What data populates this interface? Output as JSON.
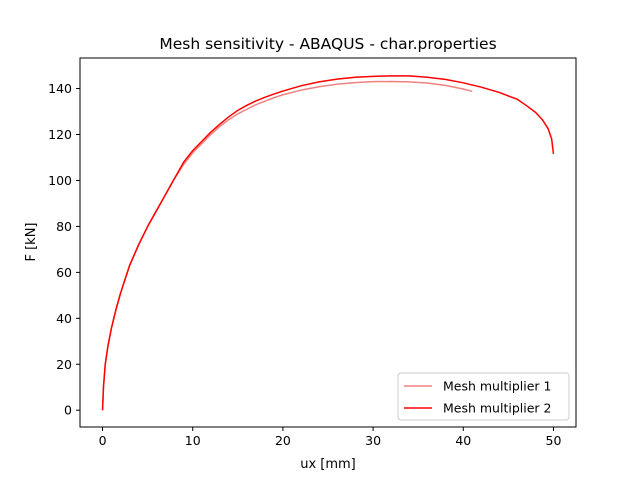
{
  "chart_data": {
    "type": "line",
    "title": "Mesh sensitivity - ABAQUS - char.properties",
    "xlabel": "ux [mm]",
    "ylabel": "F [kN]",
    "xlim": [
      -2.5,
      52.5
    ],
    "ylim": [
      -7.3,
      153.3
    ],
    "xticks": [
      0,
      10,
      20,
      30,
      40,
      50
    ],
    "yticks": [
      0,
      20,
      40,
      60,
      80,
      100,
      120,
      140
    ],
    "grid": false,
    "legend_position": "lower-right",
    "series": [
      {
        "name": "Mesh multiplier 1",
        "color": "#f08080",
        "x": [
          0,
          0.1,
          0.3,
          0.6,
          1,
          1.5,
          2,
          2.5,
          3,
          4,
          5,
          6,
          7,
          8,
          9,
          10,
          11,
          12,
          13,
          14,
          15,
          16,
          17,
          18,
          19,
          20,
          22,
          24,
          26,
          28,
          30,
          32,
          34,
          36,
          38,
          40,
          41
        ],
        "y": [
          0,
          10,
          20,
          28,
          36,
          44,
          51,
          57,
          63,
          72,
          80,
          87,
          94,
          101,
          107,
          112,
          116,
          120,
          123.5,
          126.5,
          129,
          131,
          133,
          134.5,
          136,
          137.3,
          139.3,
          140.8,
          141.9,
          142.6,
          143,
          143.1,
          142.9,
          142.4,
          141.4,
          139.8,
          138.8
        ]
      },
      {
        "name": "Mesh multiplier 2",
        "color": "#ff0000",
        "x": [
          0,
          0.1,
          0.3,
          0.6,
          1,
          1.5,
          2,
          2.5,
          3,
          4,
          5,
          6,
          7,
          8,
          9,
          10,
          11,
          12,
          13,
          14,
          15,
          16,
          17,
          18,
          19,
          20,
          22,
          24,
          26,
          28,
          30,
          32,
          34,
          36,
          38,
          40,
          42,
          44,
          46,
          47,
          48,
          48.8,
          49.4,
          49.8,
          50
        ],
        "y": [
          0,
          10,
          20,
          28,
          36,
          44,
          51,
          57,
          63,
          72,
          80,
          87,
          94,
          101,
          108,
          113,
          117,
          121,
          124.5,
          127.7,
          130.5,
          132.7,
          134.6,
          136.2,
          137.6,
          138.9,
          141.2,
          142.9,
          144.1,
          144.9,
          145.3,
          145.5,
          145.5,
          144.9,
          144,
          142.5,
          140.6,
          138.3,
          135.3,
          132.6,
          129.7,
          126.3,
          122.6,
          118.1,
          111.5
        ]
      }
    ]
  }
}
